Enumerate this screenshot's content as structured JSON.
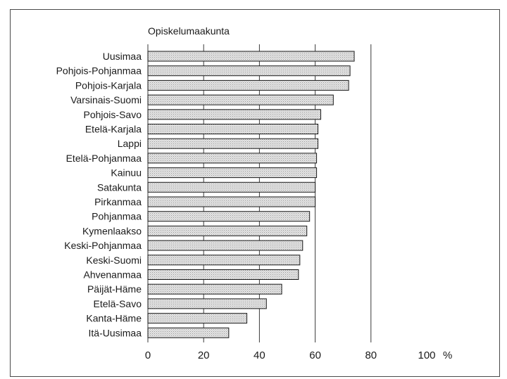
{
  "chart_data": {
    "type": "bar",
    "orientation": "horizontal",
    "title": "Opiskelumaakunta",
    "categories": [
      "Uusimaa",
      "Pohjois-Pohjanmaa",
      "Pohjois-Karjala",
      "Varsinais-Suomi",
      "Pohjois-Savo",
      "Etelä-Karjala",
      "Lappi",
      "Etelä-Pohjanmaa",
      "Kainuu",
      "Satakunta",
      "Pirkanmaa",
      "Pohjanmaa",
      "Kymenlaakso",
      "Keski-Pohjanmaa",
      "Keski-Suomi",
      "Ahvenanmaa",
      "Päijät-Häme",
      "Etelä-Savo",
      "Kanta-Häme",
      "Itä-Uusimaa"
    ],
    "values": [
      74,
      72.5,
      72,
      66.5,
      62,
      61,
      61,
      60.5,
      60.5,
      60,
      60,
      58,
      57,
      55.5,
      54.5,
      54,
      48,
      42.5,
      35.5,
      29
    ],
    "xlim": [
      0,
      100
    ],
    "xticks": [
      0,
      20,
      40,
      60,
      80,
      100
    ],
    "xtick_labels": [
      "0",
      "20",
      "40",
      "60",
      "80",
      "100"
    ],
    "x_unit": "%",
    "grid": "vertical",
    "bar_fill": "#d6d6d6",
    "bar_stroke": "#1a1a1a",
    "grid_color": "#3a3a3a"
  }
}
